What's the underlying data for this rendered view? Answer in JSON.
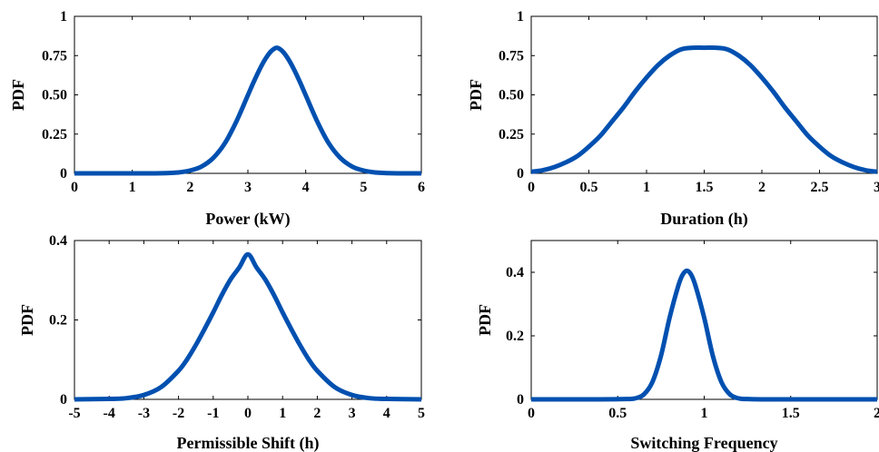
{
  "style": {
    "line_color": "#0050b0",
    "axis_color": "#000000",
    "background": "#ffffff"
  },
  "chart_data": [
    {
      "type": "line",
      "xlabel": "Power (kW)",
      "ylabel": "PDF",
      "xlim": [
        0,
        6
      ],
      "ylim": [
        0,
        1
      ],
      "xticks": [
        0,
        1,
        2,
        3,
        4,
        5,
        6
      ],
      "xtick_labels": [
        "0",
        "1",
        "2",
        "3",
        "4",
        "5",
        "6"
      ],
      "yticks": [
        0,
        0.25,
        0.5,
        0.75,
        1
      ],
      "ytick_labels": [
        "0",
        "0.25",
        "0.50",
        "0.75",
        "1"
      ],
      "grid": false,
      "series": [
        {
          "x": [
            0,
            0.5,
            1,
            1.5,
            1.8,
            2,
            2.2,
            2.4,
            2.6,
            2.8,
            3,
            3.1,
            3.2,
            3.3,
            3.4,
            3.5,
            3.6,
            3.7,
            3.8,
            3.9,
            4,
            4.2,
            4.4,
            4.6,
            4.8,
            5,
            5.2,
            5.5,
            6
          ],
          "y": [
            0,
            0,
            0,
            0.001,
            0.006,
            0.018,
            0.044,
            0.098,
            0.191,
            0.33,
            0.498,
            0.582,
            0.66,
            0.727,
            0.777,
            0.8,
            0.777,
            0.727,
            0.66,
            0.582,
            0.498,
            0.33,
            0.191,
            0.098,
            0.044,
            0.018,
            0.006,
            0.001,
            0
          ]
        }
      ]
    },
    {
      "type": "line",
      "xlabel": "Duration (h)",
      "ylabel": "PDF",
      "xlim": [
        0,
        3
      ],
      "ylim": [
        0,
        1
      ],
      "xticks": [
        0,
        0.5,
        1,
        1.5,
        2,
        2.5,
        3
      ],
      "xtick_labels": [
        "0",
        "0.5",
        "1",
        "1.5",
        "2",
        "2.5",
        "3"
      ],
      "yticks": [
        0,
        0.25,
        0.5,
        0.75,
        1
      ],
      "ytick_labels": [
        "0",
        "0.25",
        "0.50",
        "0.75",
        "1"
      ],
      "grid": false,
      "series": [
        {
          "x": [
            0,
            0.1,
            0.2,
            0.3,
            0.4,
            0.5,
            0.6,
            0.7,
            0.8,
            0.9,
            1,
            1.1,
            1.2,
            1.3,
            1.4,
            1.5,
            1.6,
            1.7,
            1.8,
            1.9,
            2,
            2.1,
            2.2,
            2.3,
            2.4,
            2.5,
            2.6,
            2.7,
            2.8,
            2.9,
            3
          ],
          "y": [
            0.01,
            0.02,
            0.04,
            0.07,
            0.11,
            0.17,
            0.24,
            0.33,
            0.42,
            0.52,
            0.61,
            0.69,
            0.75,
            0.79,
            0.8,
            0.8,
            0.8,
            0.79,
            0.75,
            0.69,
            0.61,
            0.52,
            0.42,
            0.33,
            0.24,
            0.17,
            0.11,
            0.07,
            0.04,
            0.02,
            0.01
          ]
        }
      ]
    },
    {
      "type": "line",
      "xlabel": "Permissible Shift (h)",
      "ylabel": "PDF",
      "xlim": [
        -5,
        5
      ],
      "ylim": [
        0,
        0.4
      ],
      "xticks": [
        -5,
        -4,
        -3,
        -2,
        -1,
        0,
        1,
        2,
        3,
        4,
        5
      ],
      "xtick_labels": [
        "-5",
        "-4",
        "-3",
        "-2",
        "-1",
        "0",
        "1",
        "2",
        "3",
        "4",
        "5"
      ],
      "yticks": [
        0,
        0.2,
        0.4
      ],
      "ytick_labels": [
        "0",
        "0.2",
        "0.4"
      ],
      "grid": false,
      "series": [
        {
          "x": [
            -5,
            -4,
            -3.5,
            -3,
            -2.5,
            -2,
            -1.75,
            -1.5,
            -1.25,
            -1,
            -0.75,
            -0.5,
            -0.25,
            0,
            0.25,
            0.5,
            0.75,
            1,
            1.25,
            1.5,
            1.75,
            2,
            2.5,
            3,
            3.5,
            4,
            5
          ],
          "y": [
            0,
            0.001,
            0.003,
            0.011,
            0.031,
            0.072,
            0.101,
            0.137,
            0.177,
            0.219,
            0.263,
            0.302,
            0.332,
            0.365,
            0.332,
            0.302,
            0.263,
            0.219,
            0.177,
            0.137,
            0.101,
            0.072,
            0.031,
            0.011,
            0.003,
            0.001,
            0
          ]
        }
      ]
    },
    {
      "type": "line",
      "xlabel": "Switching Frequency",
      "ylabel": "PDF",
      "xlim": [
        0,
        2
      ],
      "ylim": [
        0,
        0.5
      ],
      "xticks": [
        0,
        0.5,
        1,
        1.5,
        2
      ],
      "xtick_labels": [
        "0",
        "0.5",
        "1",
        "1.5",
        "2"
      ],
      "yticks": [
        0,
        0.2,
        0.4
      ],
      "ytick_labels": [
        "0",
        "0.2",
        "0.4"
      ],
      "grid": false,
      "series": [
        {
          "x": [
            0,
            0.4,
            0.55,
            0.6,
            0.65,
            0.7,
            0.75,
            0.8,
            0.85,
            0.875,
            0.9,
            0.925,
            0.95,
            1,
            1.05,
            1.1,
            1.15,
            1.2,
            1.25,
            1.4,
            2
          ],
          "y": [
            0,
            0,
            0.001,
            0.003,
            0.015,
            0.054,
            0.137,
            0.257,
            0.357,
            0.392,
            0.405,
            0.392,
            0.357,
            0.257,
            0.137,
            0.054,
            0.015,
            0.003,
            0.001,
            0,
            0
          ]
        }
      ]
    }
  ]
}
